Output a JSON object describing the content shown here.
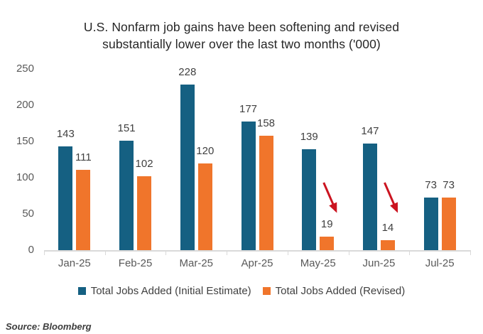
{
  "title_lines": [
    "U.S. Nonfarm job gains have been softening and revised",
    "substantially lower over the last two months ('000)"
  ],
  "source": "Source: Bloomberg",
  "colors": {
    "initial": "#156082",
    "revised": "#F0752B",
    "arrow": "#CB1420",
    "axis_line": "#d9d9d9",
    "axis_text": "#595959",
    "data_label": "#404040",
    "title_text": "#262626",
    "background": "#ffffff"
  },
  "legend": [
    {
      "label": "Total Jobs Added (Initial Estimate)",
      "color_key": "initial"
    },
    {
      "label": "Total Jobs Added (Revised)",
      "color_key": "revised"
    }
  ],
  "chart_data": {
    "type": "bar",
    "title": "U.S. Nonfarm job gains have been softening and revised substantially lower over the last two months ('000)",
    "categories": [
      "Jan-25",
      "Feb-25",
      "Mar-25",
      "Apr-25",
      "May-25",
      "Jun-25",
      "Jul-25"
    ],
    "series": [
      {
        "name": "Total Jobs Added (Initial Estimate)",
        "color_key": "initial",
        "values": [
          143,
          151,
          228,
          177,
          139,
          147,
          73
        ]
      },
      {
        "name": "Total Jobs Added (Revised)",
        "color_key": "revised",
        "values": [
          111,
          102,
          120,
          158,
          19,
          14,
          73
        ]
      }
    ],
    "data_labels": true,
    "y_ticks": [
      0,
      50,
      100,
      150,
      200,
      250
    ],
    "ylim": [
      0,
      250
    ],
    "grid": false,
    "legend_position": "bottom",
    "annotations": [
      {
        "type": "arrow",
        "target_category": "May-25",
        "target_series": "Total Jobs Added (Revised)"
      },
      {
        "type": "arrow",
        "target_category": "Jun-25",
        "target_series": "Total Jobs Added (Revised)"
      }
    ]
  }
}
